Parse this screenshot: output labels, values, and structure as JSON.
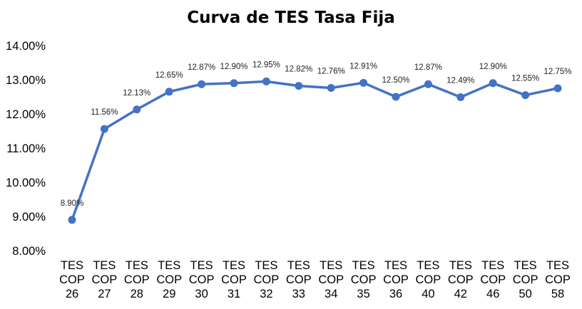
{
  "chart_data": {
    "type": "line",
    "title": "Curva de TES Tasa Fija",
    "xlabel": "",
    "ylabel": "",
    "categories": [
      [
        "TES",
        "COP",
        "26"
      ],
      [
        "TES",
        "COP",
        "27"
      ],
      [
        "TES",
        "COP",
        "28"
      ],
      [
        "TES",
        "COP",
        "29"
      ],
      [
        "TES",
        "COP",
        "30"
      ],
      [
        "TES",
        "COP",
        "31"
      ],
      [
        "TES",
        "COP",
        "32"
      ],
      [
        "TES",
        "COP",
        "33"
      ],
      [
        "TES",
        "COP",
        "34"
      ],
      [
        "TES",
        "COP",
        "35"
      ],
      [
        "TES",
        "COP",
        "36"
      ],
      [
        "TES",
        "COP",
        "40"
      ],
      [
        "TES",
        "COP",
        "42"
      ],
      [
        "TES",
        "COP",
        "46"
      ],
      [
        "TES",
        "COP",
        "50"
      ],
      [
        "TES",
        "COP",
        "58"
      ]
    ],
    "series": [
      {
        "values": [
          8.9,
          11.56,
          12.13,
          12.65,
          12.87,
          12.9,
          12.95,
          12.82,
          12.76,
          12.91,
          12.5,
          12.87,
          12.49,
          12.9,
          12.55,
          12.75
        ],
        "data_labels": [
          "8.90%",
          "11.56%",
          "12.13%",
          "12.65%",
          "12.87%",
          "12.90%",
          "12.95%",
          "12.82%",
          "12.76%",
          "12.91%",
          "12.50%",
          "12.87%",
          "12.49%",
          "12.90%",
          "12.55%",
          "12.75%"
        ],
        "color": "#4472C4"
      }
    ],
    "ylim": [
      8,
      14
    ],
    "yticks": [
      8,
      9,
      10,
      11,
      12,
      13,
      14
    ],
    "ytick_labels": [
      "8.00%",
      "9.00%",
      "10.00%",
      "11.00%",
      "12.00%",
      "13.00%",
      "14.00%"
    ],
    "grid": false,
    "legend": "none"
  }
}
